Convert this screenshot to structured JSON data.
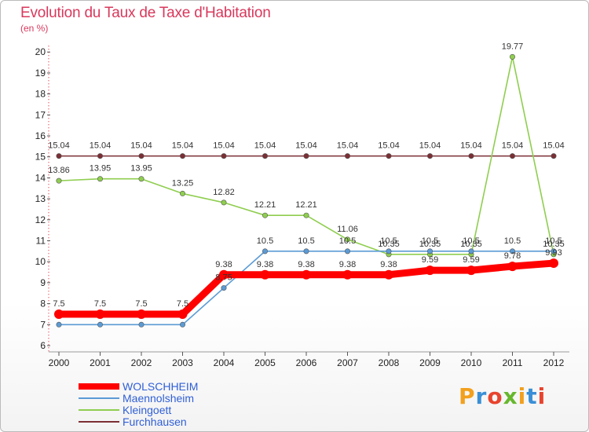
{
  "title": "Evolution du Taux de Taxe d'Habitation",
  "subtitle": "(en %)",
  "logo": {
    "text": "Proxiti",
    "letters": [
      "P",
      "r",
      "o",
      "x",
      "i",
      "t",
      "i"
    ],
    "colors": [
      "#f2a01d",
      "#3a8fd6",
      "#e8432e",
      "#67b72d",
      "#f2a01d",
      "#3a8fd6",
      "#e8432e"
    ]
  },
  "chart_data": {
    "type": "line",
    "x": [
      "2000",
      "2001",
      "2002",
      "2003",
      "2004",
      "2005",
      "2006",
      "2007",
      "2008",
      "2009",
      "2010",
      "2011",
      "2012"
    ],
    "ylim": [
      6,
      20
    ],
    "yticks": [
      6,
      7,
      8,
      9,
      10,
      11,
      12,
      13,
      14,
      15,
      16,
      17,
      18,
      19,
      20
    ],
    "grid": false,
    "legend_position": "bottom-left",
    "series": [
      {
        "name": "WOLSCHHEIM",
        "color": "#ff0000",
        "values": [
          7.5,
          7.5,
          7.5,
          7.5,
          9.38,
          9.38,
          9.38,
          9.38,
          9.38,
          9.59,
          9.59,
          9.78,
          9.93
        ],
        "labels": [
          "7.5",
          "7.5",
          "7.5",
          "7.5",
          "9.38",
          "9.38",
          "9.38",
          "9.38",
          "9.38",
          "9.59",
          "9.59",
          "9.78",
          "9.93"
        ]
      },
      {
        "name": "Maennolsheim",
        "color": "#5b9bd5",
        "values": [
          7,
          7,
          7,
          7,
          8.75,
          10.5,
          10.5,
          10.5,
          10.5,
          10.5,
          10.5,
          10.5,
          10.5
        ],
        "labels": [
          "",
          "",
          "",
          "",
          "8.75",
          "10.5",
          "10.5",
          "10.5",
          "10.5",
          "10.5",
          "10.5",
          "10.5",
          "10.5"
        ]
      },
      {
        "name": "Kleingoett",
        "color": "#8fce4f",
        "values": [
          13.86,
          13.95,
          13.95,
          13.25,
          12.82,
          12.21,
          12.21,
          11.06,
          10.35,
          10.35,
          10.35,
          19.77,
          10.35
        ],
        "labels": [
          "13.86",
          "13.95",
          "13.95",
          "13.25",
          "12.82",
          "12.21",
          "12.21",
          "11.06",
          "10.35",
          "10.35",
          "10.35",
          "19.77",
          "10.35"
        ]
      },
      {
        "name": "Furchhausen",
        "color": "#7b2f34",
        "values": [
          15.04,
          15.04,
          15.04,
          15.04,
          15.04,
          15.04,
          15.04,
          15.04,
          15.04,
          15.04,
          15.04,
          15.04,
          15.04
        ],
        "labels": [
          "15.04",
          "15.04",
          "15.04",
          "15.04",
          "15.04",
          "15.04",
          "15.04",
          "15.04",
          "15.04",
          "15.04",
          "15.04",
          "15.04",
          "15.04"
        ]
      }
    ]
  }
}
